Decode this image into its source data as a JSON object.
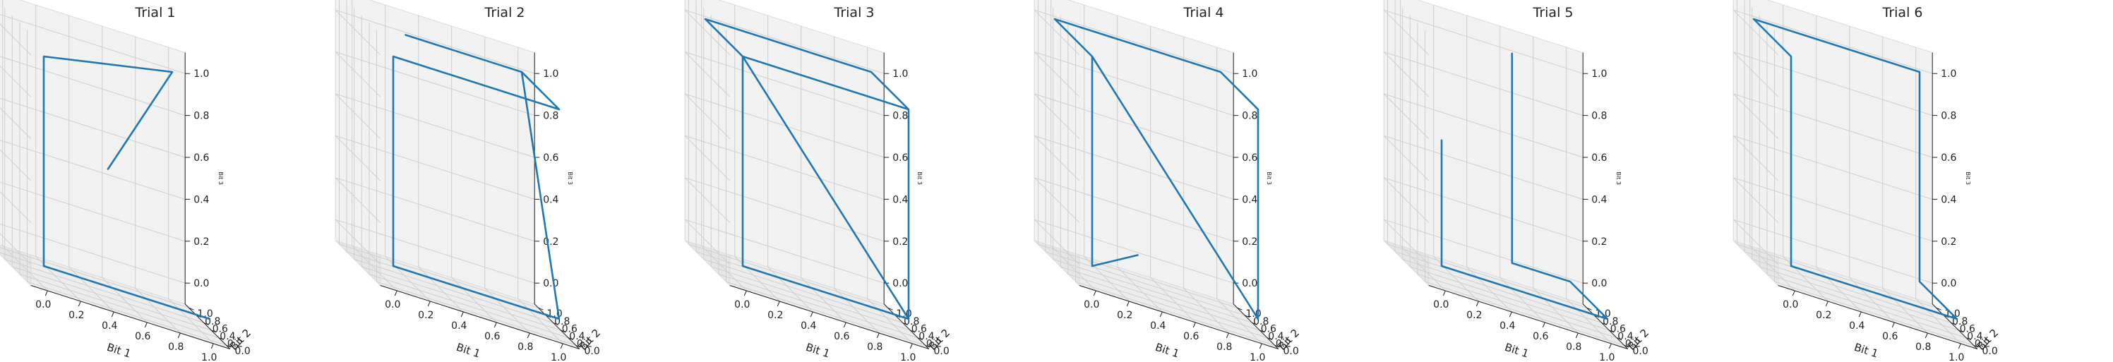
{
  "chart_data": [
    {
      "type": "line3d",
      "title": "Trial 1",
      "xlabel": "Bit 1",
      "ylabel": "Bit 2",
      "zlabel": "Bit 3",
      "xlim": [
        0,
        1
      ],
      "ylim": [
        0,
        1
      ],
      "zlim": [
        0,
        1
      ],
      "x_ticks": [
        "0.0",
        "0.2",
        "0.4",
        "0.6",
        "0.8",
        "1.0"
      ],
      "y_ticks": [
        "0.0",
        "0.2",
        "0.4",
        "0.6",
        "0.8",
        "1.0"
      ],
      "z_ticks": [
        "0.0",
        "0.2",
        "0.4",
        "0.6",
        "0.8",
        "1.0"
      ],
      "grid": true,
      "color": "#1f77b4",
      "series": [
        {
          "x": [
            0.5,
            1,
            1,
            0,
            0,
            1
          ],
          "y": [
            0.5,
            1,
            1,
            0,
            0,
            0
          ],
          "z": [
            0.5,
            1,
            1,
            1,
            0,
            0
          ]
        }
      ]
    },
    {
      "type": "line3d",
      "title": "Trial 2",
      "xlabel": "Bit 1",
      "ylabel": "Bit 2",
      "zlabel": "Bit 3",
      "xlim": [
        0,
        1
      ],
      "ylim": [
        0,
        1
      ],
      "zlim": [
        0,
        1
      ],
      "x_ticks": [
        "0.0",
        "0.2",
        "0.4",
        "0.6",
        "0.8",
        "1.0"
      ],
      "y_ticks": [
        "0.0",
        "0.2",
        "0.4",
        "0.6",
        "0.8",
        "1.0"
      ],
      "z_ticks": [
        "0.0",
        "0.2",
        "0.4",
        "0.6",
        "0.8",
        "1.0"
      ],
      "grid": true,
      "color": "#1f77b4",
      "series": [
        {
          "x": [
            0.3,
            1,
            1,
            1,
            1,
            0,
            0,
            1,
            1,
            0.5
          ],
          "y": [
            1,
            1,
            0,
            0,
            0,
            0,
            0,
            0,
            1,
            1
          ],
          "z": [
            1,
            1,
            0,
            0,
            0,
            0,
            1,
            1,
            1,
            1
          ]
        }
      ]
    },
    {
      "type": "line3d",
      "title": "Trial 3",
      "xlabel": "Bit 1",
      "ylabel": "Bit 2",
      "zlabel": "Bit 3",
      "xlim": [
        0,
        1
      ],
      "ylim": [
        0,
        1
      ],
      "zlim": [
        0,
        1
      ],
      "x_ticks": [
        "0.0",
        "0.2",
        "0.4",
        "0.6",
        "0.8",
        "1.0"
      ],
      "y_ticks": [
        "0.0",
        "0.2",
        "0.4",
        "0.6",
        "0.8",
        "1.0"
      ],
      "z_ticks": [
        "0.0",
        "0.2",
        "0.4",
        "0.6",
        "0.8",
        "1.0"
      ],
      "grid": true,
      "color": "#1f77b4",
      "series": [
        {
          "x": [
            1,
            1,
            1,
            0,
            0,
            1,
            1,
            0,
            0,
            1
          ],
          "y": [
            1,
            0,
            0,
            0,
            0,
            0,
            1,
            1,
            0,
            0
          ],
          "z": [
            1,
            1,
            0,
            0,
            1,
            1,
            1,
            1,
            1,
            0
          ]
        }
      ]
    },
    {
      "type": "line3d",
      "title": "Trial 4",
      "xlabel": "Bit 1",
      "ylabel": "Bit 2",
      "zlabel": "Bit 3",
      "xlim": [
        0,
        1
      ],
      "ylim": [
        0,
        1
      ],
      "zlim": [
        0,
        1
      ],
      "x_ticks": [
        "0.0",
        "0.2",
        "0.4",
        "0.6",
        "0.8",
        "1.0"
      ],
      "y_ticks": [
        "0.0",
        "0.2",
        "0.4",
        "0.6",
        "0.8",
        "1.0"
      ],
      "z_ticks": [
        "0.0",
        "0.2",
        "0.4",
        "0.6",
        "0.8",
        "1.0"
      ],
      "grid": true,
      "color": "#1f77b4",
      "series": [
        {
          "x": [
            0.5,
            0,
            0,
            0,
            1,
            1,
            1,
            1,
            0,
            0
          ],
          "y": [
            1,
            0,
            0,
            0,
            0,
            0,
            1,
            1,
            1,
            0
          ],
          "z": [
            0,
            0,
            0,
            1,
            0,
            1,
            1,
            1,
            1,
            1
          ]
        }
      ]
    },
    {
      "type": "line3d",
      "title": "Trial 5",
      "xlabel": "Bit 1",
      "ylabel": "Bit 2",
      "zlabel": "Bit 3",
      "xlim": [
        0,
        1
      ],
      "ylim": [
        0,
        1
      ],
      "zlim": [
        0,
        1
      ],
      "x_ticks": [
        "0.0",
        "0.2",
        "0.4",
        "0.6",
        "0.8",
        "1.0"
      ],
      "y_ticks": [
        "0.0",
        "0.2",
        "0.4",
        "0.6",
        "0.8",
        "1.0"
      ],
      "z_ticks": [
        "0.0",
        "0.2",
        "0.4",
        "0.6",
        "0.8",
        "1.0"
      ],
      "grid": true,
      "color": "#1f77b4",
      "series": [
        {
          "x": [
            0,
            0,
            0,
            1,
            1,
            0.65,
            0.65
          ],
          "y": [
            0,
            0,
            0,
            0,
            1,
            1,
            1
          ],
          "z": [
            0.6,
            0,
            0,
            0,
            0,
            0,
            1
          ]
        }
      ]
    },
    {
      "type": "line3d",
      "title": "Trial 6",
      "xlabel": "Bit 1",
      "ylabel": "Bit 2",
      "zlabel": "Bit 3",
      "xlim": [
        0,
        1
      ],
      "ylim": [
        0,
        1
      ],
      "zlim": [
        0,
        1
      ],
      "x_ticks": [
        "0.0",
        "0.2",
        "0.4",
        "0.6",
        "0.8",
        "1.0"
      ],
      "y_ticks": [
        "0.0",
        "0.2",
        "0.4",
        "0.6",
        "0.8",
        "1.0"
      ],
      "z_ticks": [
        "0.0",
        "0.2",
        "0.4",
        "0.6",
        "0.8",
        "1.0"
      ],
      "grid": true,
      "color": "#1f77b4",
      "series": [
        {
          "x": [
            0.75,
            1,
            1,
            1,
            0,
            0,
            0,
            1,
            1
          ],
          "y": [
            0,
            0,
            1,
            1,
            1,
            0,
            0,
            0,
            0.6
          ],
          "z": [
            0,
            0,
            0,
            1,
            1,
            1,
            0,
            0,
            0
          ]
        }
      ]
    }
  ]
}
